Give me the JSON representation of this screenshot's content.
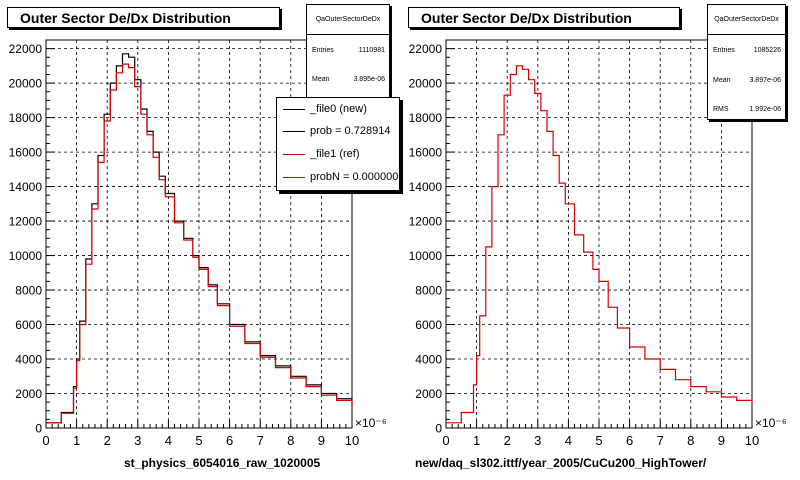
{
  "chart_data": [
    {
      "type": "line",
      "title": "Outer Sector De/Dx Distribution",
      "xlabel": "st_physics_6054016_raw_1020005",
      "x_exponent_label": "×10⁻⁶",
      "xlim": [
        0,
        10
      ],
      "ylim": [
        0,
        22500
      ],
      "xticks": [
        0,
        1,
        2,
        3,
        4,
        5,
        6,
        7,
        8,
        9,
        10
      ],
      "yticks": [
        0,
        2000,
        4000,
        6000,
        8000,
        10000,
        12000,
        14000,
        16000,
        18000,
        20000,
        22000
      ],
      "ytick_labels": [
        "0",
        "2000",
        "4000",
        "6000",
        "8000",
        "10000",
        "12000",
        "14000",
        "16000",
        "18000",
        "20000",
        "22000"
      ],
      "grid": true,
      "stats": {
        "name": "QaOuterSectorDeDx",
        "rows": [
          {
            "label": "Entries",
            "value": "1110981"
          },
          {
            "label": "Mean",
            "value": "3.895e-06"
          }
        ]
      },
      "legend": {
        "placement": "right",
        "entries": [
          {
            "text": "_file0 (new)",
            "color": "#000000"
          },
          {
            "text": "prob = 0.728914",
            "color": "#000000"
          },
          {
            "text": "_file1 (ref)",
            "color": "#d40000"
          },
          {
            "text": "probN = 0.000000",
            "color": "#d40000"
          }
        ]
      },
      "series": [
        {
          "name": "_file0 (new)",
          "color": "#000000",
          "x": [
            0,
            0.5,
            0.9,
            1.0,
            1.1,
            1.3,
            1.5,
            1.7,
            1.9,
            2.1,
            2.3,
            2.5,
            2.7,
            2.9,
            3.1,
            3.3,
            3.5,
            3.7,
            3.9,
            4.2,
            4.5,
            4.8,
            5.0,
            5.3,
            5.6,
            6.0,
            6.5,
            7.0,
            7.5,
            8.0,
            8.5,
            9.0,
            9.5,
            10.0
          ],
          "y": [
            300,
            900,
            2400,
            4000,
            6200,
            9800,
            13000,
            15800,
            18200,
            20000,
            21000,
            21700,
            21500,
            20200,
            18500,
            17200,
            16000,
            14600,
            13600,
            12000,
            11000,
            10000,
            9300,
            8300,
            7200,
            6000,
            5000,
            4200,
            3600,
            3000,
            2500,
            2000,
            1700,
            1300
          ]
        },
        {
          "name": "_file1 (ref)",
          "color": "#d40000",
          "x": [
            0,
            0.5,
            0.9,
            1.0,
            1.1,
            1.3,
            1.5,
            1.7,
            1.9,
            2.1,
            2.3,
            2.5,
            2.7,
            2.9,
            3.1,
            3.3,
            3.5,
            3.7,
            3.9,
            4.2,
            4.5,
            4.8,
            5.0,
            5.3,
            5.6,
            6.0,
            6.5,
            7.0,
            7.5,
            8.0,
            8.5,
            9.0,
            9.5,
            10.0
          ],
          "y": [
            300,
            850,
            2300,
            3900,
            6000,
            9500,
            12700,
            15400,
            17800,
            19600,
            20600,
            21100,
            20900,
            19800,
            18200,
            17000,
            15700,
            14400,
            13400,
            11900,
            10900,
            9900,
            9200,
            8200,
            7100,
            5900,
            4900,
            4100,
            3500,
            2900,
            2400,
            1900,
            1600,
            1300
          ]
        }
      ]
    },
    {
      "type": "line",
      "title": "Outer Sector De/Dx Distribution",
      "xlabel": "new/daq_sl302.ittf/year_2005/CuCu200_HighTower/",
      "x_exponent_label": "×10⁻⁶",
      "xlim": [
        0,
        10
      ],
      "ylim": [
        0,
        22500
      ],
      "xticks": [
        0,
        1,
        2,
        3,
        4,
        5,
        6,
        7,
        8,
        9,
        10
      ],
      "yticks": [
        0,
        2000,
        4000,
        6000,
        8000,
        10000,
        12000,
        14000,
        16000,
        18000,
        20000,
        22000
      ],
      "ytick_labels": [
        "0",
        "2000",
        "4000",
        "6000",
        "8000",
        "10000",
        "12000",
        "14000",
        "16000",
        "18000",
        "20000",
        "22000"
      ],
      "grid": true,
      "stats": {
        "name": "QaOuterSectorDeDx",
        "rows": [
          {
            "label": "Entries",
            "value": "1085226"
          },
          {
            "label": "Mean",
            "value": "3.897e-06"
          },
          {
            "label": "RMS",
            "value": "1.992e-06"
          }
        ]
      },
      "series": [
        {
          "name": "",
          "color": "#d40000",
          "x": [
            0,
            0.5,
            0.9,
            1.0,
            1.1,
            1.3,
            1.5,
            1.7,
            1.9,
            2.1,
            2.3,
            2.5,
            2.7,
            2.9,
            3.1,
            3.3,
            3.5,
            3.7,
            3.9,
            4.2,
            4.5,
            4.8,
            5.0,
            5.3,
            5.6,
            6.0,
            6.5,
            7.0,
            7.5,
            8.0,
            8.5,
            9.0,
            9.5,
            10.0
          ],
          "y": [
            300,
            900,
            2500,
            4200,
            6500,
            10500,
            14000,
            17000,
            19300,
            20500,
            21000,
            20800,
            20200,
            19400,
            18400,
            17200,
            15800,
            14200,
            13000,
            11200,
            10200,
            9200,
            8500,
            7000,
            5800,
            4700,
            4000,
            3400,
            2800,
            2400,
            2100,
            1800,
            1600,
            1400
          ]
        }
      ]
    }
  ]
}
